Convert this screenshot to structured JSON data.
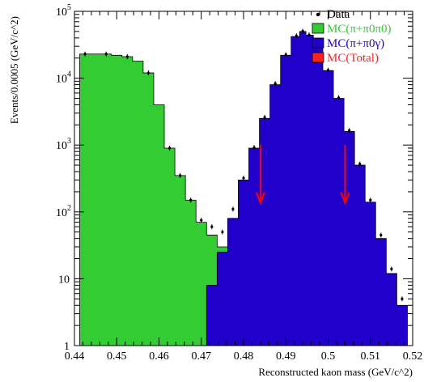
{
  "chart_data": {
    "type": "histogram",
    "xlabel": "Reconstructed kaon mass (GeV/c^2)",
    "ylabel": "Events/0.0005 (GeV/c^2)",
    "xlim": [
      0.44,
      0.52
    ],
    "ylim": [
      1,
      100000
    ],
    "log_y": true,
    "grid": false,
    "legend_position": "top-right",
    "x_ticks": [
      "0.44",
      "0.45",
      "0.46",
      "0.47",
      "0.48",
      "0.49",
      "0.5",
      "0.51",
      "0.52"
    ],
    "y_ticks": [
      {
        "value": 1,
        "base": "1",
        "exp": ""
      },
      {
        "value": 10,
        "base": "10",
        "exp": ""
      },
      {
        "value": 100,
        "base": "10",
        "exp": "2"
      },
      {
        "value": 1000,
        "base": "10",
        "exp": "3"
      },
      {
        "value": 10000,
        "base": "10",
        "exp": "4"
      },
      {
        "value": 100000,
        "base": "10",
        "exp": "5"
      }
    ],
    "legend": [
      {
        "label": "Data",
        "marker": "dot",
        "color": "#000000"
      },
      {
        "label": "MC(π+π0π0)",
        "marker": "box",
        "color": "#33cc33"
      },
      {
        "label": "MC(π+π0γ)",
        "marker": "box",
        "color": "#2200cc"
      },
      {
        "label": "MC(Total)",
        "marker": "box",
        "color": "#ff2020"
      }
    ],
    "series": [
      {
        "name": "MC(π+π0π0)",
        "color": "#33cc33",
        "x": [
          0.4425,
          0.445,
          0.4475,
          0.45,
          0.4525,
          0.455,
          0.4575,
          0.46,
          0.4625,
          0.465,
          0.4675,
          0.47,
          0.4725,
          0.475,
          0.4775,
          0.48,
          0.4825,
          0.485,
          0.4875,
          0.49,
          0.4925,
          0.495,
          0.4975,
          0.5,
          0.5025,
          0.505,
          0.5075,
          0.51,
          0.5125,
          0.515,
          0.5175
        ],
        "y": [
          23000,
          23000,
          23000,
          22000,
          21000,
          18000,
          12000,
          4000,
          900,
          350,
          150,
          70,
          45,
          30,
          18,
          12,
          8,
          6,
          4,
          3,
          3,
          2,
          2,
          2,
          2,
          2,
          2,
          1.5,
          1.5,
          1.2,
          1
        ]
      },
      {
        "name": "MC(π+π0γ)",
        "color": "#2200cc",
        "x": [
          0.4725,
          0.475,
          0.4775,
          0.48,
          0.4825,
          0.485,
          0.4875,
          0.49,
          0.4925,
          0.494,
          0.4955,
          0.4975,
          0.5,
          0.5025,
          0.505,
          0.5075,
          0.51,
          0.5125,
          0.515,
          0.5175
        ],
        "y": [
          8,
          25,
          80,
          300,
          900,
          2500,
          8000,
          22000,
          42000,
          50000,
          44000,
          30000,
          13000,
          5000,
          1600,
          500,
          140,
          40,
          12,
          4
        ]
      },
      {
        "name": "Data",
        "color": "#000000",
        "x": [
          0.4425,
          0.4475,
          0.4525,
          0.4575,
          0.4625,
          0.465,
          0.4675,
          0.47,
          0.4725,
          0.475,
          0.4775,
          0.48,
          0.4825,
          0.485,
          0.4875,
          0.49,
          0.4925,
          0.494,
          0.4955,
          0.4975,
          0.5,
          0.5025,
          0.505,
          0.5075,
          0.51,
          0.5125,
          0.515,
          0.5175
        ],
        "y": [
          23000,
          23000,
          21000,
          12000,
          900,
          350,
          150,
          75,
          60,
          50,
          110,
          320,
          920,
          2600,
          8300,
          22500,
          43000,
          50500,
          44500,
          30500,
          13200,
          5100,
          1650,
          520,
          150,
          45,
          14,
          5
        ]
      }
    ],
    "annotations": [
      {
        "type": "arrow",
        "direction": "down",
        "color": "#ff0000",
        "x": 0.484,
        "y_from": 1000,
        "y_to": 140
      },
      {
        "type": "arrow",
        "direction": "down",
        "color": "#ff0000",
        "x": 0.504,
        "y_from": 1000,
        "y_to": 140
      }
    ]
  }
}
